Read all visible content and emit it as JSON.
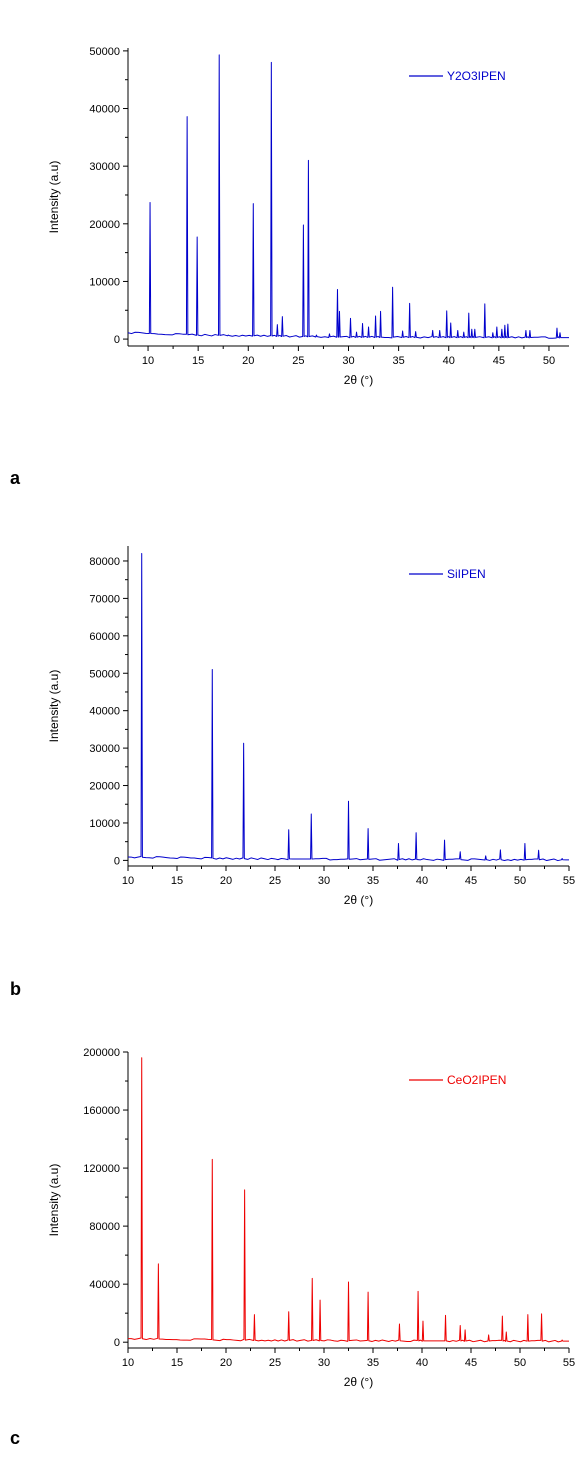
{
  "chart_data": [
    {
      "type": "line",
      "panel_label": "a",
      "xlabel": "2θ (°)",
      "ylabel": "Intensity (a.u)",
      "xlim": [
        8,
        52
      ],
      "ylim": [
        -1200,
        50500
      ],
      "x_ticks": [
        10,
        15,
        20,
        25,
        30,
        35,
        40,
        45,
        50
      ],
      "y_ticks": [
        0,
        10000,
        20000,
        30000,
        40000,
        50000
      ],
      "legend_position": "top-right",
      "color": "#0000cc",
      "series": [
        {
          "name": "Y2O3IPEN",
          "baseline": [
            [
              8,
              1100
            ],
            [
              15,
              700
            ],
            [
              30,
              350
            ],
            [
              52,
              250
            ]
          ],
          "peaks": [
            [
              10.2,
              23700
            ],
            [
              13.9,
              38600
            ],
            [
              14.9,
              17700
            ],
            [
              17.1,
              49300
            ],
            [
              18.0,
              700
            ],
            [
              20.5,
              23500
            ],
            [
              22.3,
              48000
            ],
            [
              22.9,
              2500
            ],
            [
              23.4,
              3900
            ],
            [
              25.5,
              19800
            ],
            [
              26.0,
              31000
            ],
            [
              26.8,
              700
            ],
            [
              28.1,
              900
            ],
            [
              28.9,
              8600
            ],
            [
              29.1,
              4800
            ],
            [
              30.2,
              3600
            ],
            [
              30.8,
              1200
            ],
            [
              31.4,
              2700
            ],
            [
              32.0,
              2100
            ],
            [
              32.7,
              4000
            ],
            [
              33.2,
              4800
            ],
            [
              34.4,
              9000
            ],
            [
              35.4,
              1400
            ],
            [
              36.1,
              6200
            ],
            [
              36.7,
              1300
            ],
            [
              38.4,
              1500
            ],
            [
              39.1,
              1500
            ],
            [
              39.8,
              4900
            ],
            [
              40.2,
              2800
            ],
            [
              40.9,
              1500
            ],
            [
              41.5,
              1200
            ],
            [
              42.0,
              4500
            ],
            [
              42.3,
              1700
            ],
            [
              42.6,
              1700
            ],
            [
              43.6,
              6100
            ],
            [
              44.4,
              1100
            ],
            [
              44.8,
              2100
            ],
            [
              45.3,
              1700
            ],
            [
              45.6,
              2400
            ],
            [
              45.9,
              2600
            ],
            [
              47.7,
              1500
            ],
            [
              48.1,
              1500
            ],
            [
              50.8,
              1900
            ],
            [
              51.1,
              1100
            ]
          ]
        }
      ]
    },
    {
      "type": "line",
      "panel_label": "b",
      "xlabel": "2θ (°)",
      "ylabel": "Intensity (a.u)",
      "xlim": [
        10,
        55
      ],
      "ylim": [
        -1500,
        84000
      ],
      "x_ticks": [
        10,
        15,
        20,
        25,
        30,
        35,
        40,
        45,
        50,
        55
      ],
      "y_ticks": [
        0,
        10000,
        20000,
        30000,
        40000,
        50000,
        60000,
        70000,
        80000
      ],
      "legend_position": "top-right",
      "color": "#0000cc",
      "series": [
        {
          "name": "SiIPEN",
          "baseline": [
            [
              10,
              900
            ],
            [
              20,
              500
            ],
            [
              35,
              250
            ],
            [
              55,
              150
            ]
          ],
          "peaks": [
            [
              11.4,
              82000
            ],
            [
              18.6,
              51000
            ],
            [
              21.8,
              31300
            ],
            [
              26.4,
              8200
            ],
            [
              28.7,
              12400
            ],
            [
              32.5,
              15800
            ],
            [
              34.5,
              8500
            ],
            [
              37.6,
              4500
            ],
            [
              39.4,
              7400
            ],
            [
              42.3,
              5400
            ],
            [
              43.9,
              2300
            ],
            [
              46.5,
              1200
            ],
            [
              48.0,
              2800
            ],
            [
              50.5,
              4500
            ],
            [
              51.9,
              2700
            ],
            [
              54.3,
              500
            ]
          ]
        }
      ]
    },
    {
      "type": "line",
      "panel_label": "c",
      "xlabel": "2θ (°)",
      "ylabel": "Intensity (a.u)",
      "xlim": [
        10,
        55
      ],
      "ylim": [
        -4000,
        200000
      ],
      "x_ticks": [
        10,
        15,
        20,
        25,
        30,
        35,
        40,
        45,
        50,
        55
      ],
      "y_ticks": [
        0,
        40000,
        80000,
        120000,
        160000,
        200000
      ],
      "legend_position": "top-right",
      "color": "#ee0000",
      "series": [
        {
          "name": "CeO2IPEN",
          "baseline": [
            [
              10,
              2500
            ],
            [
              20,
              1500
            ],
            [
              35,
              1000
            ],
            [
              55,
              700
            ]
          ],
          "peaks": [
            [
              11.4,
              196000
            ],
            [
              13.1,
              54000
            ],
            [
              18.6,
              126000
            ],
            [
              21.9,
              105000
            ],
            [
              22.9,
              19000
            ],
            [
              26.4,
              21000
            ],
            [
              28.8,
              44000
            ],
            [
              29.6,
              29000
            ],
            [
              32.5,
              41500
            ],
            [
              34.5,
              34500
            ],
            [
              37.7,
              12500
            ],
            [
              39.6,
              35000
            ],
            [
              40.1,
              14500
            ],
            [
              42.4,
              18500
            ],
            [
              43.9,
              11500
            ],
            [
              44.4,
              8500
            ],
            [
              46.8,
              5000
            ],
            [
              48.2,
              18000
            ],
            [
              48.6,
              7000
            ],
            [
              50.8,
              19000
            ],
            [
              52.2,
              19500
            ],
            [
              54.3,
              1500
            ]
          ]
        }
      ]
    }
  ]
}
